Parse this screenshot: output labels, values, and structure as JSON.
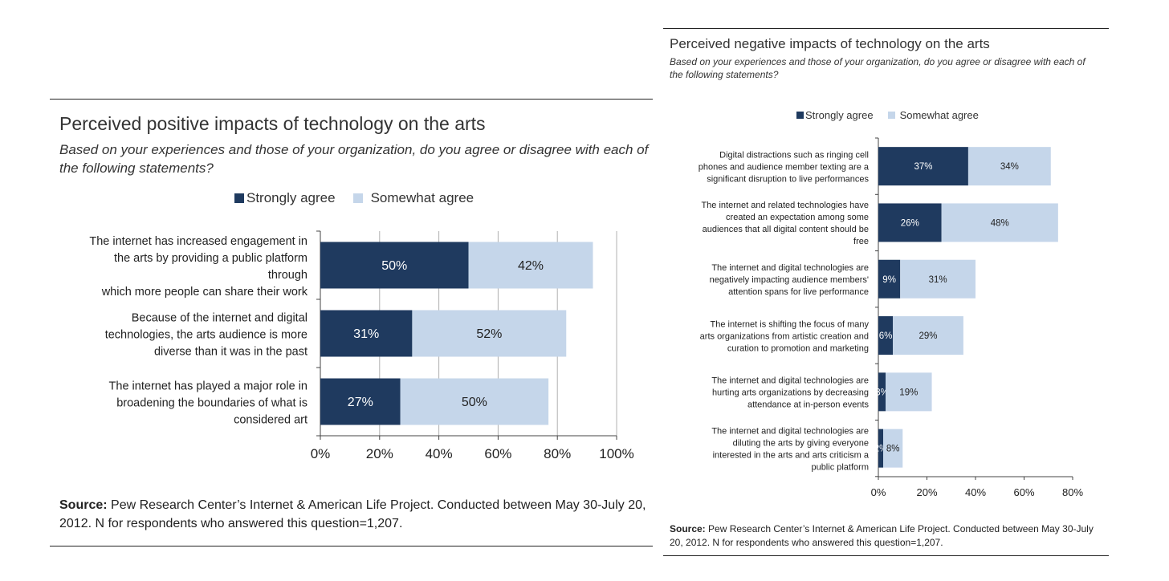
{
  "colors": {
    "strongly": "#1f3a5f",
    "somewhat": "#c5d6ea",
    "grid": "#b0b0b0"
  },
  "chart_data": [
    {
      "type": "bar",
      "orientation": "horizontal",
      "stacked": true,
      "title": "Perceived positive impacts of technology on the arts",
      "subtitle": "Based on your experiences and those of your organization, do you agree or disagree with each of the following statements?",
      "legend": [
        "Strongly agree",
        "Somewhat agree"
      ],
      "categories": [
        [
          "The internet has increased engagement in",
          "the arts by providing a public platform",
          "through",
          "which more people can share their work"
        ],
        [
          "Because of the internet and digital",
          "technologies, the arts audience is more",
          "diverse than it was in the past"
        ],
        [
          "The internet has played a major role in",
          "broadening the boundaries of what is",
          "considered art"
        ]
      ],
      "series": [
        {
          "name": "Strongly agree",
          "values": [
            50,
            31,
            27
          ],
          "labels": [
            "50%",
            "31%",
            "27%"
          ]
        },
        {
          "name": "Somewhat agree",
          "values": [
            42,
            52,
            50
          ],
          "labels": [
            "42%",
            "52%",
            "50%"
          ]
        }
      ],
      "xlim": [
        0,
        100
      ],
      "xticks": [
        "0%",
        "20%",
        "40%",
        "60%",
        "80%",
        "100%"
      ],
      "grid": true,
      "source_label": "Source:",
      "source_text": " Pew Research Center’s Internet & American Life Project. Conducted between May 30-July 20, 2012. N for respondents who answered this question=1,207."
    },
    {
      "type": "bar",
      "orientation": "horizontal",
      "stacked": true,
      "title": "Perceived negative impacts of technology on the arts",
      "subtitle": "Based on your experiences and those of your organization, do you agree or disagree with each of the following statements?",
      "legend": [
        "Strongly agree",
        "Somewhat agree"
      ],
      "categories": [
        [
          "Digital distractions such as ringing cell",
          "phones and audience member texting are a",
          "significant disruption to live performances"
        ],
        [
          "The internet and related technologies have",
          "created an expectation among some",
          "audiences that all digital content should be",
          "free"
        ],
        [
          "The internet and digital technologies are",
          "negatively impacting audience members'",
          "attention spans for live performance"
        ],
        [
          "The internet is shifting the focus of many",
          "arts organizations from artistic creation and",
          "curation to promotion and marketing"
        ],
        [
          "The internet and digital technologies are",
          "hurting arts organizations by decreasing",
          "attendance at in-person events"
        ],
        [
          "The internet and digital technologies are",
          "diluting the arts by giving everyone",
          "interested in the arts and arts criticism a",
          "public platform"
        ]
      ],
      "series": [
        {
          "name": "Strongly agree",
          "values": [
            37,
            26,
            9,
            6,
            3,
            2
          ],
          "labels": [
            "37%",
            "26%",
            "9%",
            "6%",
            "3%",
            "2%"
          ]
        },
        {
          "name": "Somewhat agree",
          "values": [
            34,
            48,
            31,
            29,
            19,
            8
          ],
          "labels": [
            "34%",
            "48%",
            "31%",
            "29%",
            "19%",
            "8%"
          ]
        }
      ],
      "xlim": [
        0,
        80
      ],
      "xticks": [
        "0%",
        "20%",
        "40%",
        "60%",
        "80%"
      ],
      "grid": false,
      "source_label": "Source:",
      "source_text": " Pew Research Center’s Internet & American Life Project. Conducted between May 30-July 20, 2012. N for respondents who answered this question=1,207."
    }
  ]
}
